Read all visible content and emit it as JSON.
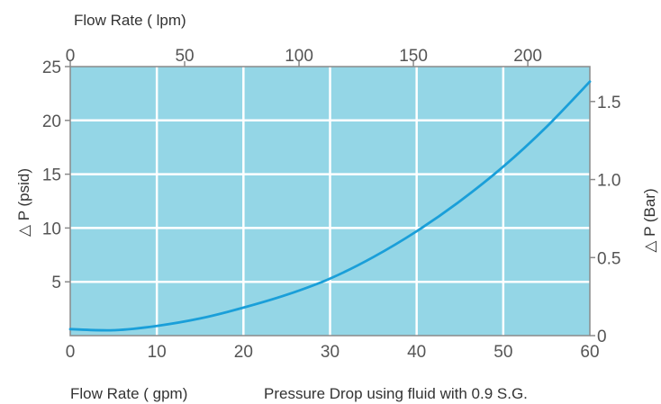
{
  "chart_data": {
    "type": "line",
    "x_label_bottom": "Flow Rate ( gpm)",
    "x_label_top": "Flow Rate ( lpm)",
    "y_label_left": "△ P (psid)",
    "y_label_right": "△ P (Bar)",
    "caption": "Pressure Drop using fluid with 0.9 S.G.",
    "xlim": [
      0,
      60
    ],
    "ylim": [
      0,
      25
    ],
    "x_ticks_bottom": [
      "0",
      "10",
      "20",
      "30",
      "40",
      "50",
      "60"
    ],
    "x_ticks_top": [
      "0",
      "50",
      "100",
      "150",
      "200"
    ],
    "x_ticks_top_values_lpm": [
      0,
      50,
      100,
      150,
      200
    ],
    "y_ticks_left": [
      "5",
      "10",
      "15",
      "20",
      "25"
    ],
    "y_ticks_left_values": [
      5,
      10,
      15,
      20,
      25
    ],
    "y_ticks_right": [
      "0",
      "0.5",
      "1.0",
      "1.5"
    ],
    "y_ticks_right_values_bar": [
      0,
      0.5,
      1.0,
      1.5
    ],
    "grid": true,
    "series": [
      {
        "x": [
          0,
          5,
          10,
          15,
          20,
          25,
          30,
          35,
          40,
          45,
          50,
          55,
          60
        ],
        "y": [
          0.6,
          0.5,
          0.9,
          1.6,
          2.6,
          3.8,
          5.3,
          7.3,
          9.7,
          12.5,
          15.7,
          19.4,
          23.6
        ]
      }
    ],
    "colors": {
      "plot_background": "#94d6e6",
      "line": "#1a9fd9",
      "grid": "#ffffff",
      "frame": "#8a8a8a"
    }
  }
}
